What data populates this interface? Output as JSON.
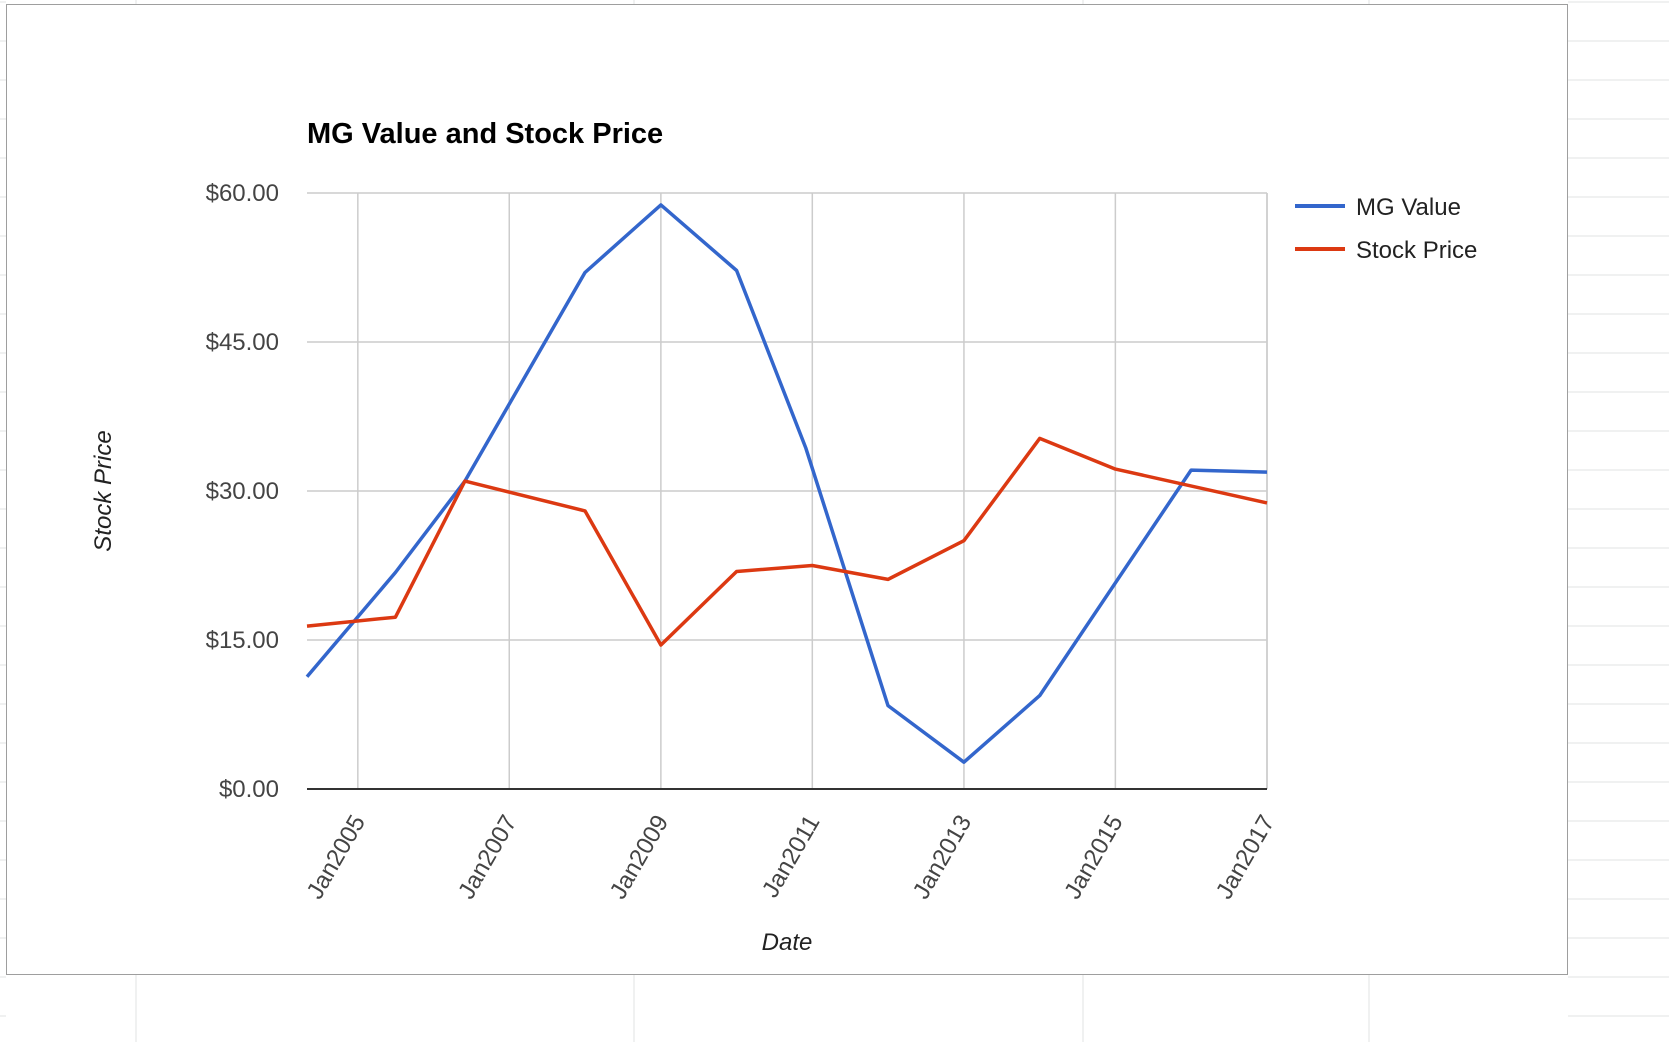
{
  "colors": {
    "mg_value": "#3366cc",
    "stock_price": "#dc3912",
    "grid": "#cccccc",
    "baseline": "#333333"
  },
  "chart_data": {
    "type": "line",
    "title": "MG Value and Stock Price",
    "xlabel": "Date",
    "ylabel": "Stock Price",
    "x_ticks": [
      "Jan2005",
      "Jan2007",
      "Jan2009",
      "Jan2011",
      "Jan2013",
      "Jan2015",
      "Jan2017"
    ],
    "y_ticks": [
      "$0.00",
      "$15.00",
      "$30.00",
      "$45.00",
      "$60.00"
    ],
    "xlim": [
      "2004-05-01",
      "2017-01-01"
    ],
    "ylim": [
      0,
      60
    ],
    "grid": true,
    "legend_position": "right",
    "series": [
      {
        "name": "MG Value",
        "points": [
          [
            "2004-05-01",
            11.3
          ],
          [
            "2005-07-01",
            21.8
          ],
          [
            "2006-06-01",
            31.0
          ],
          [
            "2008-01-01",
            52.0
          ],
          [
            "2009-01-01",
            58.8
          ],
          [
            "2010-01-01",
            52.2
          ],
          [
            "2010-12-01",
            34.3
          ],
          [
            "2012-01-01",
            8.4
          ],
          [
            "2013-01-01",
            2.7
          ],
          [
            "2014-01-01",
            9.4
          ],
          [
            "2016-01-01",
            32.1
          ],
          [
            "2017-01-01",
            31.9
          ]
        ]
      },
      {
        "name": "Stock Price",
        "points": [
          [
            "2004-05-01",
            16.4
          ],
          [
            "2005-07-01",
            17.3
          ],
          [
            "2006-06-01",
            31.0
          ],
          [
            "2008-01-01",
            28.0
          ],
          [
            "2009-01-01",
            14.5
          ],
          [
            "2010-01-01",
            21.9
          ],
          [
            "2011-01-01",
            22.5
          ],
          [
            "2012-01-01",
            21.1
          ],
          [
            "2013-01-01",
            25.0
          ],
          [
            "2014-01-01",
            35.3
          ],
          [
            "2015-01-01",
            32.2
          ],
          [
            "2017-01-01",
            28.8
          ]
        ]
      }
    ]
  }
}
